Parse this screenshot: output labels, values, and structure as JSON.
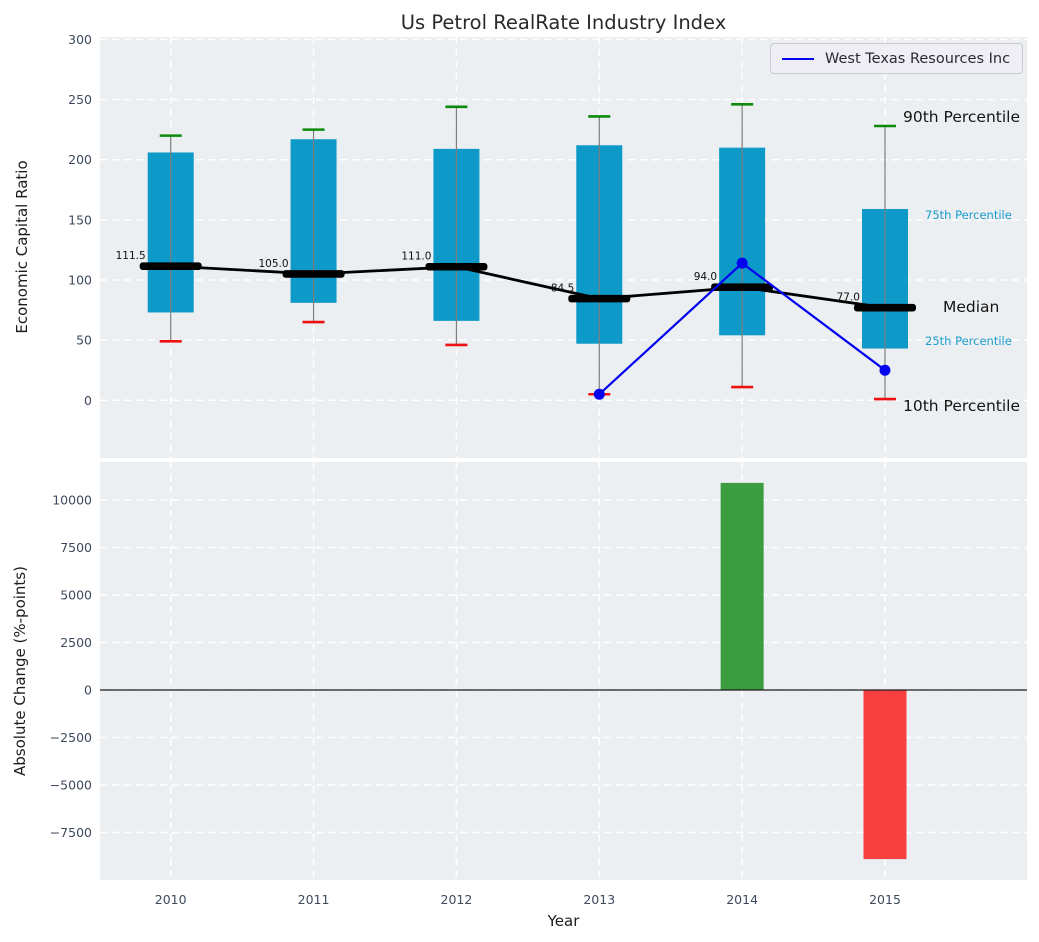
{
  "title": "Us Petrol RealRate Industry Index",
  "legend": {
    "label": "West Texas Resources Inc"
  },
  "annotations": {
    "p90": "90th Percentile",
    "p75": "75th Percentile",
    "median": "Median",
    "p25": "25th Percentile",
    "p10": "10th Percentile"
  },
  "colors": {
    "axes_bg": "#eceff1",
    "grid": "#ffffff",
    "box": "#0e9ac9",
    "median": "#000000",
    "p90_cap": "#0c8a0c",
    "p10_cap": "#ee1111",
    "whisker": "#7d7d7d",
    "company_line": "#0202ee",
    "bar_positive": "#3b9c40",
    "bar_negative": "#f94040",
    "tick_label": "#3e4b5e",
    "percentile_label": "#1b9ccd",
    "zero_line": "#1a1a1a"
  },
  "chart_data": [
    {
      "type": "box-percentile-fan",
      "title": "Us Petrol RealRate Industry Index",
      "ylabel": "Economic Capital Ratio",
      "ylim": [
        -48,
        302
      ],
      "yticks": [
        0,
        50,
        100,
        150,
        200,
        250,
        300
      ],
      "grid": true,
      "legend_position": "upper right",
      "categories": [
        "2010",
        "2011",
        "2012",
        "2013",
        "2014",
        "2015"
      ],
      "series": [
        {
          "name": "10th Percentile",
          "values": [
            49,
            65,
            46,
            5,
            11,
            1
          ]
        },
        {
          "name": "25th Percentile",
          "values": [
            73,
            81,
            66,
            47,
            54,
            43
          ]
        },
        {
          "name": "Median",
          "values": [
            111.5,
            105.0,
            111.0,
            84.5,
            94.0,
            77.0
          ]
        },
        {
          "name": "75th Percentile",
          "values": [
            206,
            217,
            209,
            212,
            210,
            159
          ]
        },
        {
          "name": "90th Percentile",
          "values": [
            220,
            225,
            244,
            236,
            246,
            228
          ]
        }
      ],
      "median_labels": [
        "111.5",
        "105.0",
        "111.0",
        "84.5",
        "94.0",
        "77.0"
      ],
      "company_line": {
        "name": "West Texas Resources Inc",
        "x": [
          "2013",
          "2014",
          "2015"
        ],
        "y": [
          5,
          114,
          25
        ]
      }
    },
    {
      "type": "bar",
      "ylabel": "Absolute Change (%-points)",
      "xlabel": "Year",
      "ylim": [
        -10000,
        12000
      ],
      "yticks": [
        10000,
        7500,
        5000,
        2500,
        0,
        -2500,
        -5000,
        -7500
      ],
      "grid": true,
      "categories": [
        "2010",
        "2011",
        "2012",
        "2013",
        "2014",
        "2015"
      ],
      "values": [
        null,
        null,
        null,
        null,
        10900,
        -8900
      ]
    }
  ]
}
